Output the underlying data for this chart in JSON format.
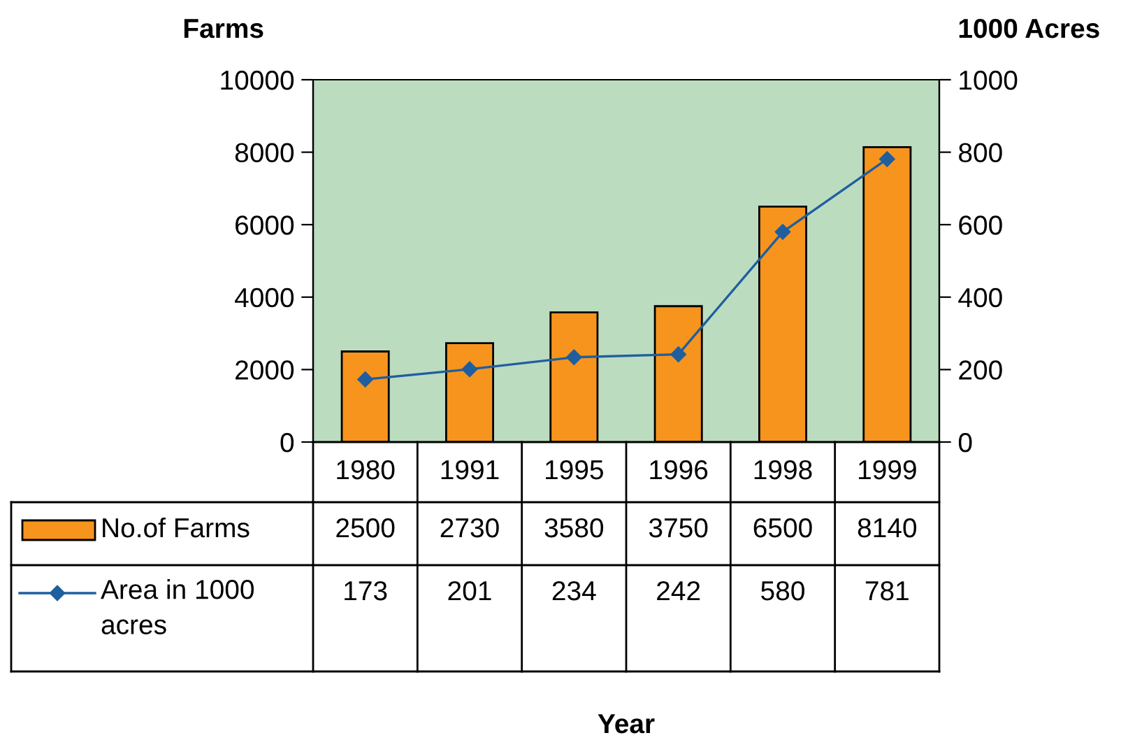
{
  "chart_data": {
    "type": "bar",
    "annotations": [
      "Year"
    ],
    "ylabel": "Farms",
    "y2label": "1000 Acres",
    "categories": [
      "1980",
      "1991",
      "1995",
      "1996",
      "1998",
      "1999"
    ],
    "series": [
      {
        "name": "No.of Farms",
        "color": "#f7941d",
        "values": [
          2500,
          2730,
          3580,
          3750,
          6500,
          8140
        ]
      },
      {
        "name": "Area in 1000 acres",
        "type": "line",
        "axis": "y2",
        "color": "#1f5f9f",
        "marker": "diamond",
        "values": [
          173,
          201,
          234,
          242,
          580,
          781
        ]
      }
    ],
    "ylim": [
      0,
      10000
    ],
    "yticks": [
      0,
      2000,
      4000,
      6000,
      8000,
      10000
    ],
    "y2lim": [
      0,
      1000
    ],
    "y2ticks": [
      0,
      200,
      400,
      600,
      800,
      1000
    ],
    "data_labels": true,
    "legend": "bottom",
    "grid": false
  }
}
